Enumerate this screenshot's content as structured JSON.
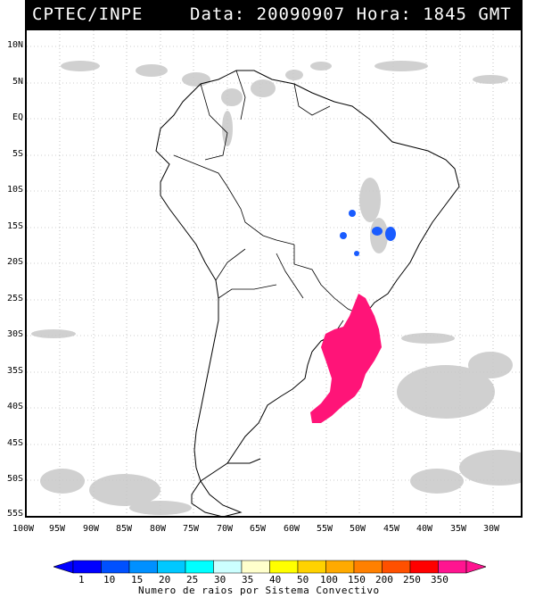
{
  "header": {
    "source": "CPTEC/INPE",
    "datetime": "Data: 20090907 Hora: 1845 GMT"
  },
  "lat_ticks": [
    "10N",
    "5N",
    "EQ",
    "5S",
    "10S",
    "15S",
    "20S",
    "25S",
    "30S",
    "35S",
    "40S",
    "45S",
    "50S",
    "55S"
  ],
  "lon_ticks": [
    "100W",
    "95W",
    "90W",
    "85W",
    "80W",
    "75W",
    "70W",
    "65W",
    "60W",
    "55W",
    "50W",
    "45W",
    "40W",
    "35W",
    "30W"
  ],
  "legend": {
    "values": [
      "1",
      "10",
      "15",
      "20",
      "25",
      "30",
      "35",
      "40",
      "50",
      "100",
      "150",
      "200",
      "250",
      "350"
    ],
    "colors": [
      "#0000ff",
      "#0050ff",
      "#0090ff",
      "#00c8ff",
      "#00ffff",
      "#ccffff",
      "#ffffcc",
      "#ffff00",
      "#ffd200",
      "#ffaa00",
      "#ff8000",
      "#ff5000",
      "#ff0000",
      "#ff1490"
    ],
    "title": "Numero de raios por Sistema Convectivo"
  },
  "colors": {
    "cloud": "#c8c8c8",
    "storm_blue": "#1a5cff",
    "storm_pink": "#ff1478"
  }
}
